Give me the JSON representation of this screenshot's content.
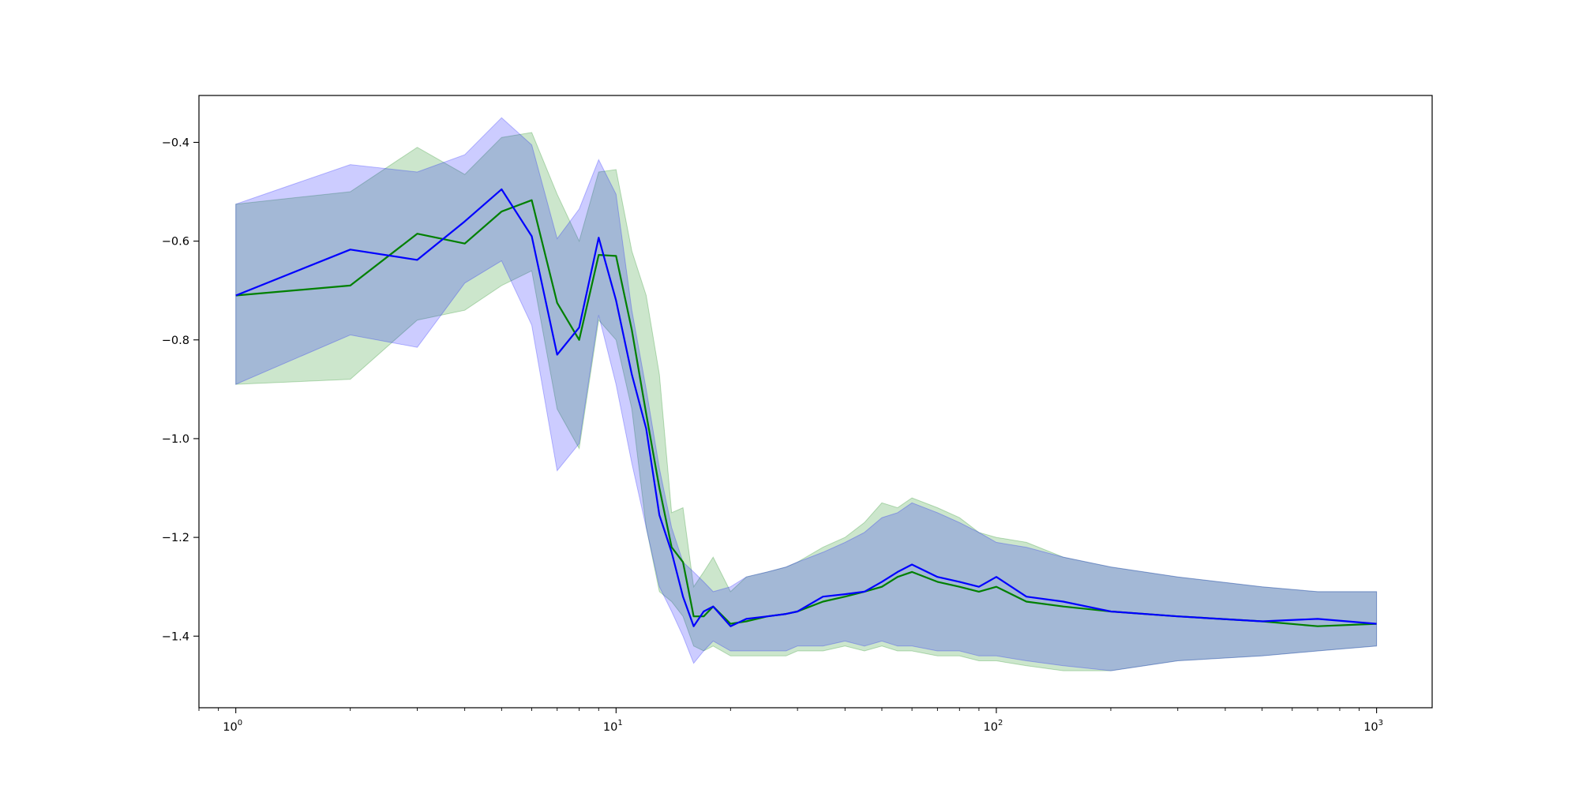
{
  "chart_data": {
    "type": "line",
    "title": "",
    "xlabel": "",
    "ylabel": "",
    "xscale": "log",
    "xlim": [
      0.8,
      1400
    ],
    "ylim": [
      -1.545,
      -0.305
    ],
    "grid": false,
    "legend": "none",
    "x_tick_labels": [
      {
        "base": "10",
        "exp": "0",
        "value": 1
      },
      {
        "base": "10",
        "exp": "1",
        "value": 10
      },
      {
        "base": "10",
        "exp": "2",
        "value": 100
      },
      {
        "base": "10",
        "exp": "3",
        "value": 1000
      }
    ],
    "y_tick_labels": [
      {
        "text": "−0.4",
        "value": -0.4
      },
      {
        "text": "−0.6",
        "value": -0.6
      },
      {
        "text": "−0.8",
        "value": -0.8
      },
      {
        "text": "−1.0",
        "value": -1.0
      },
      {
        "text": "−1.2",
        "value": -1.2
      },
      {
        "text": "−1.4",
        "value": -1.4
      }
    ],
    "series": [
      {
        "color": "#008000",
        "band_color": "#008000",
        "x": [
          1,
          2,
          3,
          4,
          5,
          6,
          7,
          8,
          9,
          10,
          11,
          12,
          13,
          14,
          15,
          16,
          17,
          18,
          20,
          22,
          25,
          28,
          30,
          35,
          40,
          45,
          50,
          55,
          60,
          70,
          80,
          90,
          100,
          120,
          150,
          200,
          300,
          500,
          700,
          1000
        ],
        "mean": [
          -0.71,
          -0.69,
          -0.585,
          -0.605,
          -0.54,
          -0.517,
          -0.725,
          -0.8,
          -0.628,
          -0.63,
          -0.78,
          -0.95,
          -1.1,
          -1.22,
          -1.25,
          -1.36,
          -1.36,
          -1.34,
          -1.375,
          -1.37,
          -1.36,
          -1.355,
          -1.35,
          -1.33,
          -1.32,
          -1.31,
          -1.3,
          -1.28,
          -1.27,
          -1.29,
          -1.3,
          -1.31,
          -1.3,
          -1.33,
          -1.34,
          -1.35,
          -1.36,
          -1.37,
          -1.38,
          -1.375
        ],
        "upper": [
          -0.525,
          -0.5,
          -0.41,
          -0.465,
          -0.39,
          -0.38,
          -0.505,
          -0.6,
          -0.46,
          -0.455,
          -0.62,
          -0.71,
          -0.87,
          -1.15,
          -1.14,
          -1.3,
          -1.27,
          -1.24,
          -1.31,
          -1.28,
          -1.27,
          -1.26,
          -1.25,
          -1.22,
          -1.2,
          -1.17,
          -1.13,
          -1.14,
          -1.12,
          -1.14,
          -1.16,
          -1.19,
          -1.2,
          -1.21,
          -1.24,
          -1.26,
          -1.28,
          -1.3,
          -1.31,
          -1.31
        ],
        "lower": [
          -0.89,
          -0.88,
          -0.76,
          -0.74,
          -0.69,
          -0.66,
          -0.94,
          -1.02,
          -0.76,
          -0.8,
          -0.94,
          -1.18,
          -1.31,
          -1.33,
          -1.36,
          -1.42,
          -1.43,
          -1.42,
          -1.44,
          -1.44,
          -1.44,
          -1.44,
          -1.43,
          -1.43,
          -1.42,
          -1.43,
          -1.42,
          -1.43,
          -1.43,
          -1.44,
          -1.44,
          -1.45,
          -1.45,
          -1.46,
          -1.47,
          -1.47,
          -1.45,
          -1.44,
          -1.43,
          -1.42
        ]
      },
      {
        "color": "#0000ff",
        "band_color": "#0000ff",
        "x": [
          1,
          2,
          3,
          4,
          5,
          6,
          7,
          8,
          9,
          10,
          11,
          12,
          13,
          14,
          15,
          16,
          17,
          18,
          20,
          22,
          25,
          28,
          30,
          35,
          40,
          45,
          50,
          55,
          60,
          70,
          80,
          90,
          100,
          120,
          150,
          200,
          300,
          500,
          700,
          1000
        ],
        "mean": [
          -0.71,
          -0.617,
          -0.638,
          -0.56,
          -0.495,
          -0.59,
          -0.83,
          -0.775,
          -0.593,
          -0.72,
          -0.87,
          -0.98,
          -1.155,
          -1.23,
          -1.32,
          -1.38,
          -1.35,
          -1.34,
          -1.38,
          -1.365,
          -1.36,
          -1.355,
          -1.35,
          -1.32,
          -1.315,
          -1.31,
          -1.29,
          -1.27,
          -1.255,
          -1.28,
          -1.29,
          -1.3,
          -1.28,
          -1.32,
          -1.33,
          -1.35,
          -1.36,
          -1.37,
          -1.365,
          -1.375
        ],
        "upper": [
          -0.525,
          -0.445,
          -0.46,
          -0.425,
          -0.35,
          -0.405,
          -0.595,
          -0.535,
          -0.435,
          -0.505,
          -0.74,
          -0.9,
          -1.06,
          -1.18,
          -1.25,
          -1.27,
          -1.29,
          -1.31,
          -1.3,
          -1.28,
          -1.27,
          -1.26,
          -1.25,
          -1.23,
          -1.21,
          -1.19,
          -1.16,
          -1.15,
          -1.13,
          -1.15,
          -1.17,
          -1.19,
          -1.21,
          -1.22,
          -1.24,
          -1.26,
          -1.28,
          -1.3,
          -1.31,
          -1.31
        ],
        "lower": [
          -0.89,
          -0.79,
          -0.815,
          -0.685,
          -0.64,
          -0.77,
          -1.065,
          -1.01,
          -0.75,
          -0.89,
          -1.05,
          -1.18,
          -1.3,
          -1.35,
          -1.4,
          -1.455,
          -1.43,
          -1.41,
          -1.43,
          -1.43,
          -1.43,
          -1.43,
          -1.42,
          -1.42,
          -1.41,
          -1.42,
          -1.41,
          -1.42,
          -1.42,
          -1.43,
          -1.43,
          -1.44,
          -1.44,
          -1.45,
          -1.46,
          -1.47,
          -1.45,
          -1.44,
          -1.43,
          -1.42
        ]
      }
    ]
  }
}
